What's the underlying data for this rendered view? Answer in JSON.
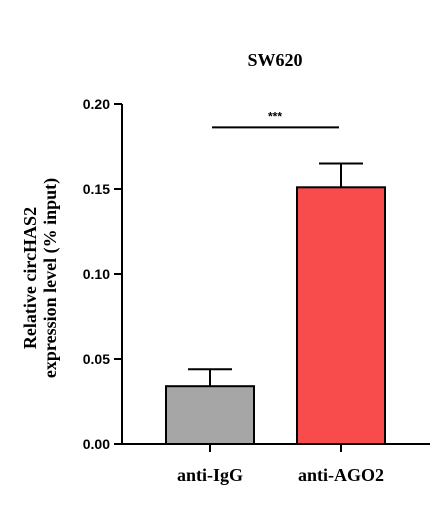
{
  "chart_data": {
    "type": "bar",
    "title": "SW620",
    "ylabel_line1": "Relative circHAS2",
    "ylabel_line2": "expression level (% input)",
    "xlabel": "",
    "categories": [
      "anti-IgG",
      "anti-AGO2"
    ],
    "values": [
      0.034,
      0.151
    ],
    "errors": [
      0.01,
      0.014
    ],
    "colors": [
      "#a6a6a6",
      "#f84c4c"
    ],
    "ylim": [
      0,
      0.2
    ],
    "yticks": [
      0.0,
      0.05,
      0.1,
      0.15,
      0.2
    ],
    "ytick_labels": [
      "0.00",
      "0.05",
      "0.10",
      "0.15",
      "0.20"
    ],
    "significance": {
      "label": "***",
      "between": [
        "anti-IgG",
        "anti-AGO2"
      ],
      "level": 0.188
    },
    "grid": false,
    "legend": "none"
  }
}
